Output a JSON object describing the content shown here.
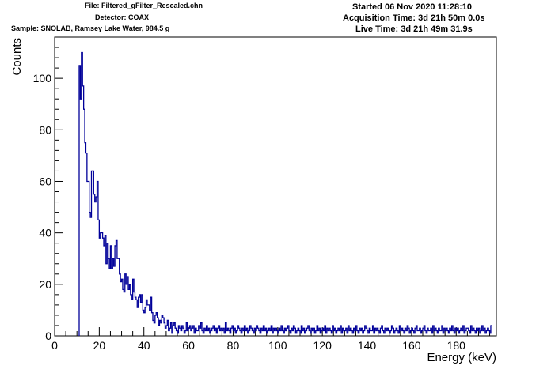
{
  "header": {
    "file": "File: Filtered_gFilter_Rescaled.chn",
    "detector": "Detector: COAX",
    "sample": "Sample: SNOLAB, Ramsey Lake Water, 984.5 g",
    "started": "Started 06 Nov 2020 11:28:10",
    "acquisition": "Acquisition Time: 3d 21h 50m 0.0s",
    "live": "Live Time: 3d 21h 49m 31.9s"
  },
  "chart_data": {
    "type": "line",
    "style": "step histogram",
    "line_color": "#000099",
    "xlabel": "Energy (keV)",
    "ylabel": "Counts",
    "xlim": [
      0,
      198
    ],
    "ylim": [
      0,
      116
    ],
    "x_major_ticks": [
      0,
      20,
      40,
      60,
      80,
      100,
      120,
      140,
      160,
      180
    ],
    "x_tick_labels": [
      "0",
      "20",
      "40",
      "60",
      "80",
      "100",
      "120",
      "140",
      "160",
      "180"
    ],
    "y_major_ticks": [
      0,
      20,
      40,
      60,
      80,
      100
    ],
    "y_tick_labels": [
      "0",
      "20",
      "40",
      "60",
      "80",
      "100"
    ],
    "grid": false,
    "legend": "none",
    "bin_width": 0.5,
    "x_start": 11,
    "values": [
      105,
      92,
      110,
      97,
      88,
      75,
      71,
      60,
      60,
      48,
      46,
      64,
      64,
      55,
      52,
      54,
      60,
      45,
      38,
      40,
      40,
      38,
      35,
      39,
      28,
      36,
      30,
      26,
      35,
      26,
      30,
      27,
      35,
      37,
      30,
      30,
      24,
      21,
      22,
      18,
      17,
      24,
      20,
      23,
      18,
      20,
      16,
      14,
      22,
      17,
      15,
      14,
      11,
      15,
      16,
      13,
      16,
      10,
      9,
      11,
      14,
      12,
      12,
      10,
      15,
      9,
      6,
      5,
      8,
      9,
      7,
      4,
      6,
      5,
      8,
      7,
      5,
      3,
      4,
      6,
      2,
      3,
      5,
      1,
      4,
      5,
      3,
      2,
      1,
      4,
      3,
      2,
      4,
      3,
      1,
      2,
      5,
      2,
      3,
      4,
      2,
      3,
      4,
      1,
      3,
      2,
      2,
      4,
      3,
      5,
      2,
      1,
      3,
      2,
      4,
      2,
      3,
      1,
      2,
      3,
      4,
      2,
      3,
      1,
      3,
      4,
      2,
      3,
      2,
      3,
      1,
      5,
      2,
      3,
      2,
      1,
      3,
      4,
      2,
      3,
      1,
      2,
      4,
      3,
      2,
      1,
      3,
      2,
      4,
      2,
      3,
      1,
      2,
      4,
      3,
      2,
      1,
      3,
      2,
      4,
      3,
      2,
      1,
      3,
      2,
      4,
      2,
      3,
      1,
      2,
      3,
      2,
      4,
      1,
      3,
      2,
      3,
      2,
      1,
      3,
      2,
      4,
      2,
      1,
      3,
      2,
      3,
      4,
      2,
      1,
      3,
      2,
      4,
      3,
      1,
      2,
      3,
      2,
      1,
      4,
      2,
      3,
      1,
      2,
      3,
      4,
      2,
      1,
      3,
      2,
      3,
      1,
      2,
      4,
      2,
      3,
      1,
      2,
      3,
      2,
      4,
      1,
      3,
      2,
      3,
      2,
      1,
      4,
      2,
      3,
      1,
      2,
      3,
      2,
      4,
      1,
      3,
      2,
      2,
      3,
      1,
      4,
      2,
      3,
      2,
      1,
      3,
      2,
      4,
      2,
      1,
      3,
      2,
      3,
      1,
      2,
      4,
      3,
      2,
      1,
      3,
      2,
      2,
      4,
      1,
      3,
      2,
      3,
      2,
      1,
      3,
      4,
      2,
      1,
      3,
      2,
      3,
      2,
      1,
      2,
      4,
      3,
      1,
      2,
      3,
      2,
      1,
      4,
      2,
      3,
      2,
      1,
      3,
      2,
      4,
      3,
      1,
      2,
      3,
      2,
      1,
      3,
      4,
      2,
      2,
      3,
      1,
      2,
      3,
      4,
      2,
      1,
      3,
      2,
      2,
      3,
      1,
      4,
      2,
      3,
      2,
      1,
      3,
      2,
      2,
      4,
      1,
      3,
      2,
      3,
      2,
      1,
      3,
      2,
      4,
      2,
      1,
      3,
      2,
      3,
      1,
      2,
      3,
      2,
      4,
      1,
      2,
      3,
      3,
      2,
      1,
      4,
      2,
      3,
      2,
      1,
      3,
      2,
      3,
      1,
      2,
      4,
      2,
      3,
      1,
      2,
      3,
      2,
      1,
      4
    ]
  }
}
